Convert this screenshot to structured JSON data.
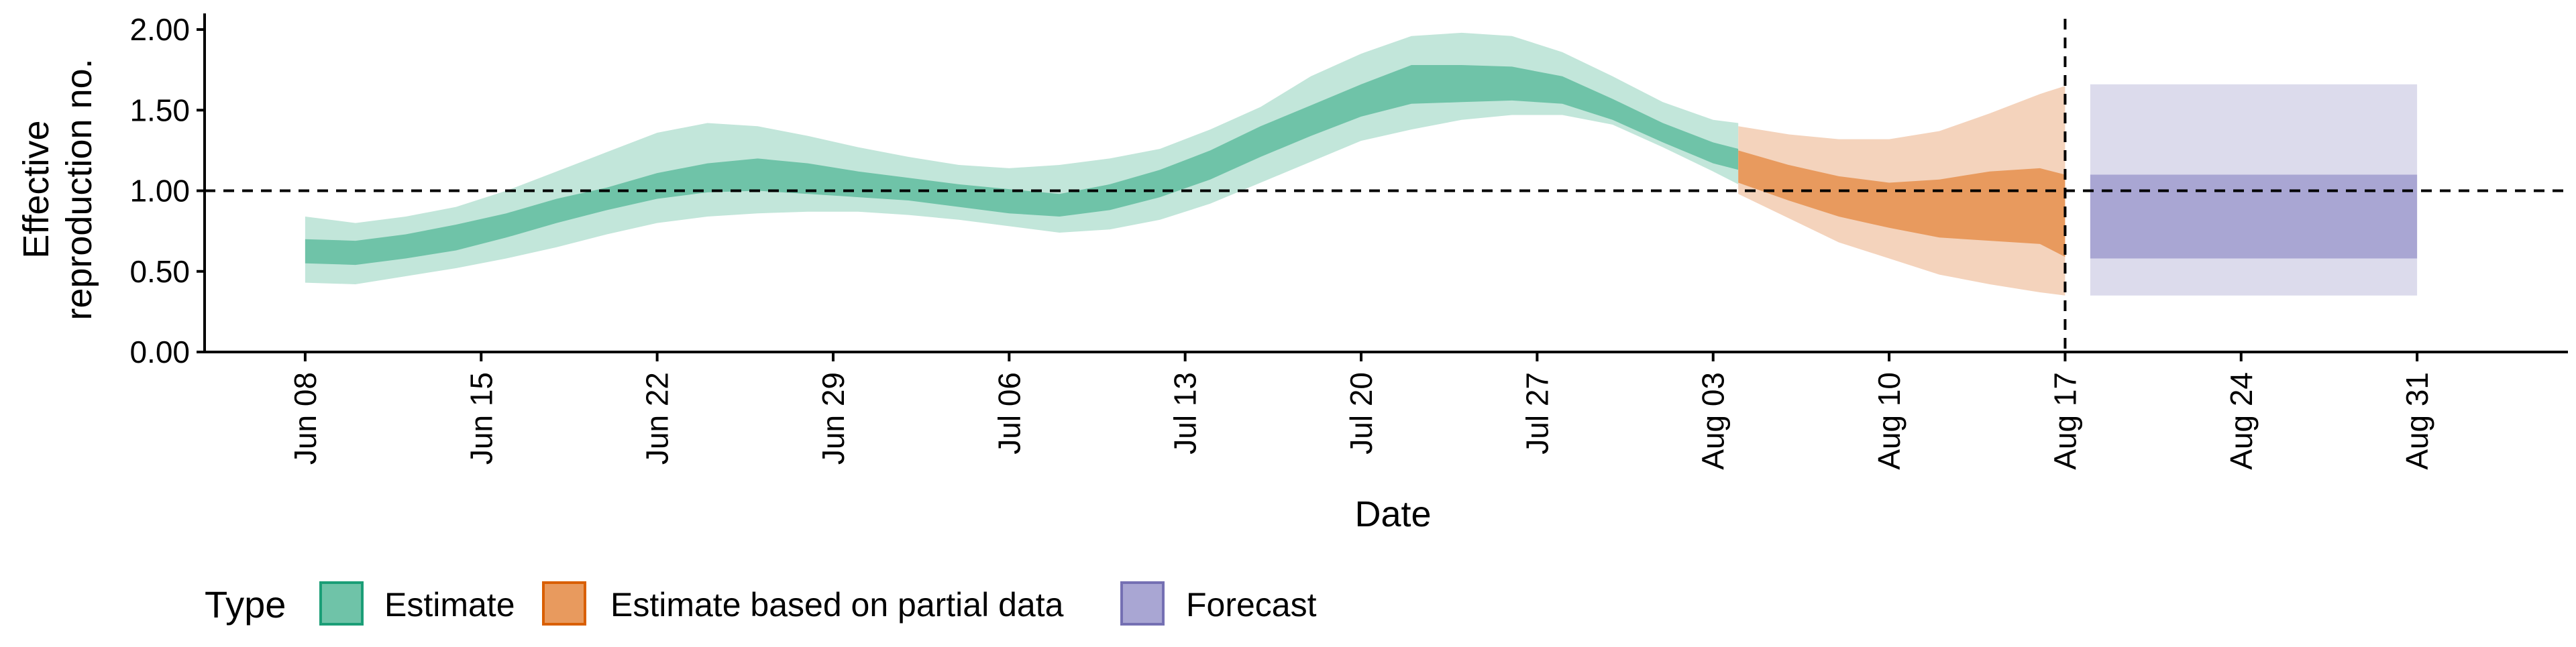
{
  "chart_data": {
    "type": "area",
    "xlabel": "Date",
    "ylabel": "Effective reproduction no.",
    "ylabel_lines": [
      "Effective",
      "reproduction no."
    ],
    "ylim": [
      0,
      2.1
    ],
    "yticks": [
      0.0,
      0.5,
      1.0,
      1.5,
      2.0
    ],
    "ytick_labels": [
      "0.00",
      "0.50",
      "1.00",
      "1.50",
      "2.00"
    ],
    "xlim": [
      "2020-06-04",
      "2020-09-06"
    ],
    "xticks": [
      "2020-06-08",
      "2020-06-15",
      "2020-06-22",
      "2020-06-29",
      "2020-07-06",
      "2020-07-13",
      "2020-07-20",
      "2020-07-27",
      "2020-08-03",
      "2020-08-10",
      "2020-08-17",
      "2020-08-24",
      "2020-08-31"
    ],
    "xtick_labels": [
      "Jun 08",
      "Jun 15",
      "Jun 22",
      "Jun 29",
      "Jul 06",
      "Jul 13",
      "Jul 20",
      "Jul 27",
      "Aug 03",
      "Aug 10",
      "Aug 17",
      "Aug 24",
      "Aug 31"
    ],
    "reference_line": 1.0,
    "vertical_line": "2020-08-17",
    "grid": false,
    "legend": {
      "title": "Type",
      "position": "bottom-left",
      "entries": [
        {
          "label": "Estimate",
          "fill": "#6fc3a8",
          "stroke": "#1b9e77"
        },
        {
          "label": "Estimate based on partial data",
          "fill": "#e89a5e",
          "stroke": "#d95f02"
        },
        {
          "label": "Forecast",
          "fill": "#a9a6d3",
          "stroke": "#7570b3"
        }
      ]
    },
    "series": [
      {
        "name": "Estimate",
        "inner_color": "#6fc3a8",
        "outer_color": "#c2e6da",
        "x": [
          "2020-06-08",
          "2020-06-10",
          "2020-06-12",
          "2020-06-14",
          "2020-06-16",
          "2020-06-18",
          "2020-06-20",
          "2020-06-22",
          "2020-06-24",
          "2020-06-26",
          "2020-06-28",
          "2020-06-30",
          "2020-07-02",
          "2020-07-04",
          "2020-07-06",
          "2020-07-08",
          "2020-07-10",
          "2020-07-12",
          "2020-07-14",
          "2020-07-16",
          "2020-07-18",
          "2020-07-20",
          "2020-07-22",
          "2020-07-24",
          "2020-07-26",
          "2020-07-28",
          "2020-07-30",
          "2020-08-01",
          "2020-08-03",
          "2020-08-04"
        ],
        "lower_90": [
          0.43,
          0.42,
          0.47,
          0.52,
          0.58,
          0.65,
          0.73,
          0.8,
          0.84,
          0.86,
          0.87,
          0.87,
          0.85,
          0.82,
          0.78,
          0.74,
          0.76,
          0.82,
          0.92,
          1.05,
          1.18,
          1.31,
          1.38,
          1.44,
          1.47,
          1.47,
          1.41,
          1.27,
          1.12,
          1.04
        ],
        "lower_50": [
          0.55,
          0.54,
          0.58,
          0.63,
          0.71,
          0.8,
          0.88,
          0.95,
          0.99,
          1.0,
          0.98,
          0.96,
          0.94,
          0.9,
          0.86,
          0.84,
          0.88,
          0.96,
          1.07,
          1.21,
          1.34,
          1.46,
          1.54,
          1.55,
          1.56,
          1.54,
          1.44,
          1.3,
          1.17,
          1.13
        ],
        "upper_50": [
          0.7,
          0.69,
          0.73,
          0.79,
          0.86,
          0.95,
          1.02,
          1.11,
          1.17,
          1.2,
          1.17,
          1.12,
          1.08,
          1.04,
          1.01,
          0.98,
          1.04,
          1.13,
          1.25,
          1.4,
          1.53,
          1.66,
          1.78,
          1.78,
          1.77,
          1.71,
          1.57,
          1.42,
          1.3,
          1.26
        ],
        "upper_90": [
          0.84,
          0.8,
          0.84,
          0.9,
          1.0,
          1.12,
          1.24,
          1.36,
          1.42,
          1.4,
          1.34,
          1.27,
          1.21,
          1.16,
          1.14,
          1.16,
          1.2,
          1.26,
          1.38,
          1.52,
          1.71,
          1.85,
          1.96,
          1.98,
          1.96,
          1.86,
          1.71,
          1.55,
          1.44,
          1.42
        ]
      },
      {
        "name": "Estimate based on partial data",
        "inner_color": "#e89a5e",
        "outer_color": "#f4d3bc",
        "x": [
          "2020-08-04",
          "2020-08-06",
          "2020-08-08",
          "2020-08-10",
          "2020-08-12",
          "2020-08-14",
          "2020-08-16",
          "2020-08-17"
        ],
        "lower_90": [
          0.98,
          0.83,
          0.68,
          0.58,
          0.48,
          0.42,
          0.37,
          0.35
        ],
        "lower_50": [
          1.05,
          0.94,
          0.84,
          0.77,
          0.71,
          0.69,
          0.67,
          0.59
        ],
        "upper_50": [
          1.25,
          1.16,
          1.09,
          1.05,
          1.07,
          1.12,
          1.14,
          1.1
        ],
        "upper_90": [
          1.4,
          1.35,
          1.32,
          1.32,
          1.37,
          1.48,
          1.6,
          1.65
        ]
      },
      {
        "name": "Forecast",
        "inner_color": "#a9a6d3",
        "outer_color": "#dcdbec",
        "x": [
          "2020-08-18",
          "2020-08-31"
        ],
        "lower_90": [
          0.35,
          0.35
        ],
        "lower_50": [
          0.58,
          0.58
        ],
        "upper_50": [
          1.1,
          1.1
        ],
        "upper_90": [
          1.66,
          1.66
        ]
      }
    ]
  }
}
